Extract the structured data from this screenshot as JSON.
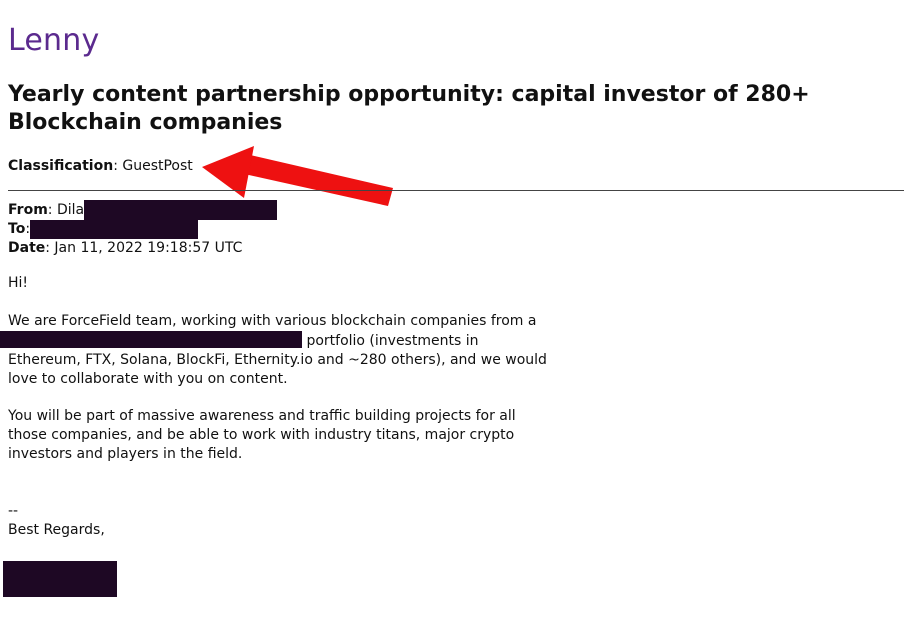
{
  "brand": {
    "name": "Lenny"
  },
  "email": {
    "subject": "Yearly content partnership opportunity: capital investor of 280+ Blockchain companies",
    "classification_label": "Classification",
    "classification_value": ": GuestPost",
    "from_label": "From",
    "from_value": ": Dila",
    "to_label": "To",
    "to_value": ":",
    "date_label": "Date",
    "date_value": ": Jan 11, 2022 19:18:57 UTC",
    "greeting": "Hi!",
    "para1_line1": "We are ForceField team, working with various blockchain companies from a",
    "para1_line2_tail": " portfolio (investments in",
    "para1_line3": "Ethereum, FTX, Solana, BlockFi, Ethernity.io and ~280 others), and we would",
    "para1_line4": "love to collaborate with you on content.",
    "para2_line1": "You will be part of massive awareness and traffic building projects for all",
    "para2_line2": "those companies, and be able to work with industry titans, major crypto",
    "para2_line3": "investors and players in the field.",
    "sig_dash": "--",
    "closing": "Best Regards,"
  },
  "colors": {
    "brand": "#5b2a8e",
    "redaction": "#1e0824",
    "arrow": "#ee1111"
  },
  "icons": {
    "annotation": "red-arrow-icon"
  }
}
